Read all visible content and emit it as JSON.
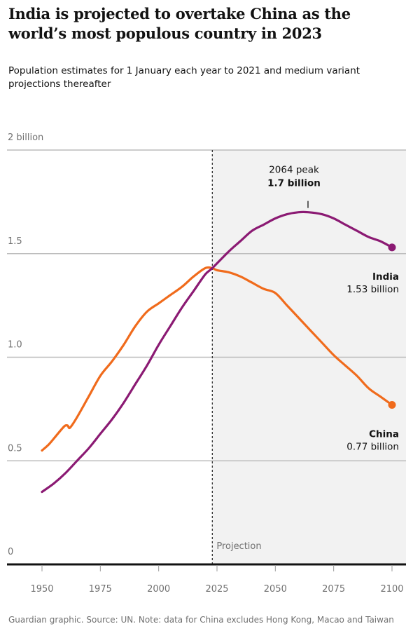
{
  "header": {
    "title": "India is projected to overtake China as the world’s most populous country in 2023",
    "subtitle": "Population estimates for 1 January each year to 2021 and medium variant projections thereafter"
  },
  "footer": {
    "source": "Guardian graphic. Source: UN. Note: data for China excludes Hong Kong, Macao and Taiwan"
  },
  "colors": {
    "india": "#8b1a73",
    "china": "#f06b1c",
    "projection_shade": "#f2f2f2",
    "gridline": "#bcbcbc",
    "axis": "#121212"
  },
  "chart_data": {
    "type": "line",
    "title": "India is projected to overtake China as the world’s most populous country in 2023",
    "subtitle": "Population estimates for 1 January each year to 2021 and medium variant projections thereafter",
    "xlabel": "",
    "ylabel": "",
    "xlim": [
      1935,
      2106
    ],
    "ylim": [
      0,
      2
    ],
    "x_ticks": [
      1950,
      1975,
      2000,
      2025,
      2050,
      2075,
      2100
    ],
    "x_tick_labels": [
      "1950",
      "1975",
      "2000",
      "2025",
      "2050",
      "2075",
      "2100"
    ],
    "y_ticks": [
      0,
      0.5,
      1.0,
      1.5,
      2
    ],
    "y_tick_labels": [
      "0",
      "0.5",
      "1.0",
      "1.5",
      "2 billion"
    ],
    "grid": true,
    "projection_start": 2023,
    "projection_label": "Projection",
    "series": [
      {
        "name": "India",
        "color": "#8b1a73",
        "x": [
          1950,
          1955,
          1960,
          1965,
          1970,
          1975,
          1980,
          1985,
          1990,
          1995,
          2000,
          2005,
          2010,
          2015,
          2020,
          2023,
          2030,
          2035,
          2040,
          2045,
          2050,
          2055,
          2060,
          2064,
          2070,
          2075,
          2080,
          2085,
          2090,
          2095,
          2100
        ],
        "values": [
          0.35,
          0.39,
          0.44,
          0.5,
          0.56,
          0.63,
          0.7,
          0.78,
          0.87,
          0.96,
          1.06,
          1.15,
          1.24,
          1.32,
          1.4,
          1.43,
          1.51,
          1.56,
          1.61,
          1.64,
          1.67,
          1.69,
          1.7,
          1.7,
          1.69,
          1.67,
          1.64,
          1.61,
          1.58,
          1.56,
          1.53
        ],
        "end_label": "India",
        "end_value_label": "1.53 billion"
      },
      {
        "name": "China",
        "color": "#f06b1c",
        "x": [
          1950,
          1953,
          1956,
          1959,
          1960,
          1961,
          1962,
          1965,
          1970,
          1975,
          1980,
          1985,
          1990,
          1995,
          2000,
          2005,
          2010,
          2015,
          2020,
          2023,
          2025,
          2030,
          2035,
          2040,
          2045,
          2050,
          2055,
          2060,
          2065,
          2070,
          2075,
          2080,
          2085,
          2090,
          2095,
          2100
        ],
        "values": [
          0.55,
          0.58,
          0.62,
          0.66,
          0.67,
          0.67,
          0.66,
          0.71,
          0.81,
          0.91,
          0.98,
          1.06,
          1.15,
          1.22,
          1.26,
          1.3,
          1.34,
          1.39,
          1.43,
          1.43,
          1.42,
          1.41,
          1.39,
          1.36,
          1.33,
          1.31,
          1.25,
          1.19,
          1.13,
          1.07,
          1.01,
          0.96,
          0.91,
          0.85,
          0.81,
          0.77
        ],
        "end_label": "China",
        "end_value_label": "0.77 billion"
      }
    ],
    "annotations": [
      {
        "x": 2064,
        "y": 1.7,
        "line1": "2064 peak",
        "line2": "1.7 billion"
      }
    ]
  }
}
